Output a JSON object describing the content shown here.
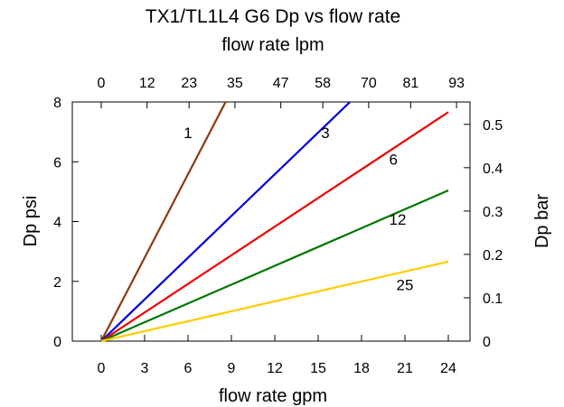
{
  "chart_data": {
    "type": "line",
    "title": "TX1/TL1L4 G6 Dp vs flow rate",
    "xlabel": "flow rate gpm",
    "ylabel": "Dp psi",
    "x2label": "flow rate lpm",
    "y2label": "Dp bar",
    "xlim": [
      -2,
      25.5
    ],
    "ylim": [
      0,
      8
    ],
    "y2lim": [
      0,
      0.5516
    ],
    "x_ticks": [
      0,
      3,
      6,
      9,
      12,
      15,
      18,
      21,
      24
    ],
    "x_tick_labels": [
      "0",
      "3",
      "6",
      "9",
      "12",
      "15",
      "18",
      "21",
      "24"
    ],
    "y_ticks": [
      0,
      2,
      4,
      6,
      8
    ],
    "y_tick_labels": [
      "0",
      "2",
      "4",
      "6",
      "8"
    ],
    "x2_ticks_lpm": [
      0,
      12,
      23,
      35,
      47,
      58,
      70,
      81,
      93
    ],
    "x2_tick_labels": [
      "0",
      "12",
      "23",
      "35",
      "47",
      "58",
      "70",
      "81",
      "93"
    ],
    "y2_ticks_bar": [
      0,
      0.1,
      0.2,
      0.3,
      0.4,
      0.5
    ],
    "y2_tick_labels": [
      "0",
      "0.1",
      "0.2",
      "0.3",
      "0.4",
      "0.5"
    ],
    "grid": false,
    "legend": "none (lines labeled inline)",
    "series": [
      {
        "name": "1",
        "color": "#8B3A0F",
        "x": [
          0,
          8.6
        ],
        "y": [
          0,
          8.0
        ]
      },
      {
        "name": "3",
        "color": "#0000DD",
        "x": [
          0,
          17.2
        ],
        "y": [
          0,
          8.0
        ]
      },
      {
        "name": "6",
        "color": "#EE0000",
        "x": [
          0,
          24.0
        ],
        "y": [
          0,
          7.66
        ]
      },
      {
        "name": "12",
        "color": "#007700",
        "x": [
          0,
          24.0
        ],
        "y": [
          0,
          5.04
        ]
      },
      {
        "name": "25",
        "color": "#FFCC00",
        "x": [
          0,
          24.0
        ],
        "y": [
          0,
          2.66
        ]
      }
    ],
    "annotations": [
      {
        "text": "1",
        "x": 6.0,
        "y": 6.8
      },
      {
        "text": "3",
        "x": 15.5,
        "y": 6.8
      },
      {
        "text": "6",
        "x": 20.2,
        "y": 5.9
      },
      {
        "text": "12",
        "x": 20.5,
        "y": 3.9
      },
      {
        "text": "25",
        "x": 21.0,
        "y": 1.7
      }
    ]
  }
}
